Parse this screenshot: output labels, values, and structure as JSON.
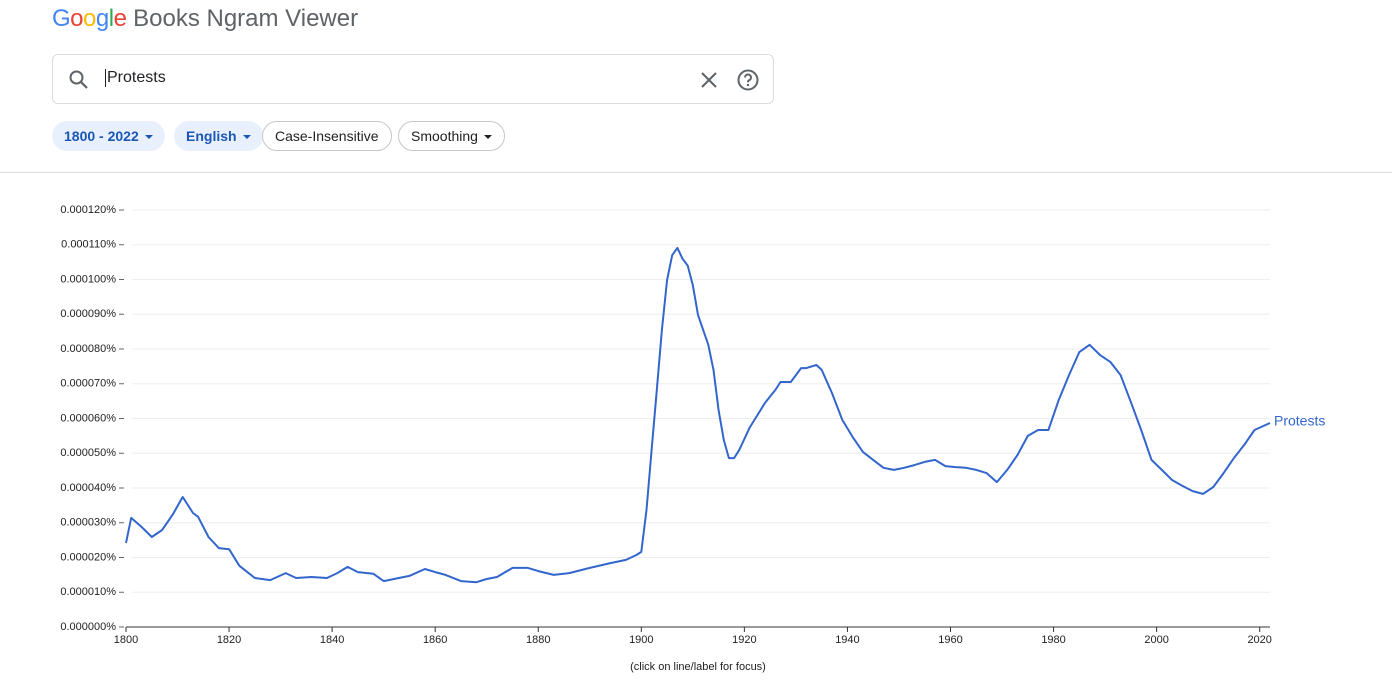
{
  "header": {
    "logo": "Google",
    "title": "Books Ngram Viewer"
  },
  "search": {
    "query": "Protests"
  },
  "filters": [
    "1800 - 2022",
    "English",
    "Case-Insensitive",
    "Smoothing"
  ],
  "chart_data": {
    "type": "line",
    "x": [
      1800,
      1801,
      1803,
      1805,
      1807,
      1809,
      1811,
      1813,
      1814,
      1816,
      1818,
      1820,
      1822,
      1825,
      1828,
      1831,
      1833,
      1836,
      1839,
      1841,
      1843,
      1845,
      1848,
      1850,
      1852,
      1855,
      1858,
      1860,
      1862,
      1865,
      1868,
      1870,
      1872,
      1875,
      1878,
      1880,
      1883,
      1886,
      1890,
      1894,
      1897,
      1899,
      1900,
      1901,
      1902,
      1903,
      1904,
      1905,
      1906,
      1907,
      1908,
      1909,
      1910,
      1911,
      1913,
      1914,
      1915,
      1916,
      1917,
      1918,
      1919,
      1921,
      1924,
      1926,
      1927,
      1929,
      1931,
      1932,
      1934,
      1935,
      1937,
      1939,
      1941,
      1943,
      1945,
      1947,
      1949,
      1951,
      1953,
      1955,
      1957,
      1959,
      1961,
      1963,
      1965,
      1967,
      1969,
      1971,
      1973,
      1975,
      1977,
      1979,
      1981,
      1983,
      1985,
      1987,
      1989,
      1991,
      1993,
      1995,
      1997,
      1999,
      2001,
      2003,
      2005,
      2007,
      2009,
      2011,
      2013,
      2015,
      2017,
      2019,
      2022
    ],
    "series": [
      {
        "name": "Protests",
        "color": "#3366cc",
        "values": [
          2.42e-05,
          3.14e-05,
          2.88e-05,
          2.59e-05,
          2.79e-05,
          3.22e-05,
          3.74e-05,
          3.28e-05,
          3.17e-05,
          2.59e-05,
          2.27e-05,
          2.24e-05,
          1.76e-05,
          1.41e-05,
          1.35e-05,
          1.55e-05,
          1.41e-05,
          1.44e-05,
          1.41e-05,
          1.55e-05,
          1.73e-05,
          1.58e-05,
          1.53e-05,
          1.32e-05,
          1.38e-05,
          1.47e-05,
          1.67e-05,
          1.58e-05,
          1.5e-05,
          1.32e-05,
          1.29e-05,
          1.38e-05,
          1.44e-05,
          1.7e-05,
          1.7e-05,
          1.61e-05,
          1.5e-05,
          1.55e-05,
          1.7e-05,
          1.84e-05,
          1.93e-05,
          2.07e-05,
          2.16e-05,
          3.37e-05,
          5.09e-05,
          6.82e-05,
          8.55e-05,
          9.99e-05,
          0.000107,
          0.0001091,
          0.000106,
          0.000104,
          9.84e-05,
          8.98e-05,
          8.12e-05,
          7.4e-05,
          6.24e-05,
          5.38e-05,
          4.86e-05,
          4.86e-05,
          5.09e-05,
          5.73e-05,
          6.45e-05,
          6.82e-05,
          7.05e-05,
          7.05e-05,
          7.45e-05,
          7.45e-05,
          7.54e-05,
          7.4e-05,
          6.73e-05,
          5.96e-05,
          5.47e-05,
          5.04e-05,
          4.81e-05,
          4.58e-05,
          4.52e-05,
          4.58e-05,
          4.66e-05,
          4.75e-05,
          4.81e-05,
          4.63e-05,
          4.6e-05,
          4.58e-05,
          4.52e-05,
          4.43e-05,
          4.17e-05,
          4.52e-05,
          4.95e-05,
          5.5e-05,
          5.67e-05,
          5.67e-05,
          6.53e-05,
          7.25e-05,
          7.91e-05,
          8.12e-05,
          7.83e-05,
          7.63e-05,
          7.25e-05,
          6.47e-05,
          5.67e-05,
          4.81e-05,
          4.52e-05,
          4.23e-05,
          4.06e-05,
          3.91e-05,
          3.83e-05,
          4.03e-05,
          4.43e-05,
          4.86e-05,
          5.24e-05,
          5.67e-05,
          5.87e-05
        ]
      }
    ],
    "xlim": [
      1800,
      2022
    ],
    "xticks": [
      1800,
      1820,
      1840,
      1860,
      1880,
      1900,
      1920,
      1940,
      1960,
      1980,
      2000,
      2020
    ],
    "ylim": [
      0,
      0.00012
    ],
    "yticks": [
      {
        "value": 0,
        "label": "0.000000%"
      },
      {
        "value": 1e-05,
        "label": "0.000010%"
      },
      {
        "value": 2e-05,
        "label": "0.000020%"
      },
      {
        "value": 3e-05,
        "label": "0.000030%"
      },
      {
        "value": 4e-05,
        "label": "0.000040%"
      },
      {
        "value": 5e-05,
        "label": "0.000050%"
      },
      {
        "value": 6e-05,
        "label": "0.000060%"
      },
      {
        "value": 7e-05,
        "label": "0.000070%"
      },
      {
        "value": 8e-05,
        "label": "0.000080%"
      },
      {
        "value": 9e-05,
        "label": "0.000090%"
      },
      {
        "value": 0.0001,
        "label": "0.000100%"
      },
      {
        "value": 0.00011,
        "label": "0.000110%"
      },
      {
        "value": 0.00012,
        "label": "0.000120%"
      }
    ],
    "grid": true,
    "note": "(click on line/label for focus)"
  }
}
